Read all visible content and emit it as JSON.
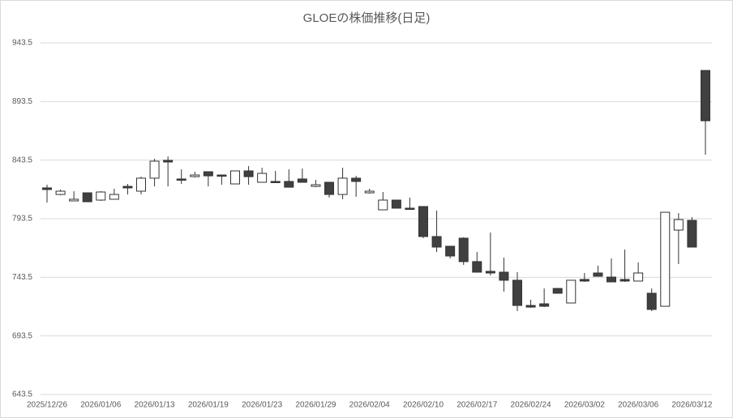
{
  "chart_data": {
    "type": "candlestick",
    "title": "GLOEの株価推移(日足)",
    "categories": [
      "2025/12/26",
      null,
      null,
      null,
      "2026/01/06",
      null,
      null,
      null,
      "2026/01/13",
      null,
      null,
      null,
      "2026/01/19",
      null,
      null,
      null,
      "2026/01/23",
      null,
      null,
      null,
      "2026/01/29",
      null,
      null,
      null,
      "2026/02/04",
      null,
      null,
      null,
      "2026/02/10",
      null,
      null,
      null,
      "2026/02/17",
      null,
      null,
      null,
      "2026/02/24",
      null,
      null,
      null,
      "2026/03/02",
      null,
      null,
      null,
      "2026/03/06",
      null,
      null,
      null,
      "2026/03/12",
      null
    ],
    "open": [
      819.8,
      814.2,
      808.7,
      815.6,
      809.4,
      810.1,
      821.1,
      817.0,
      828.1,
      843.3,
      827.4,
      829.4,
      833.6,
      830.8,
      823.2,
      834.3,
      824.6,
      825.3,
      825.3,
      827.4,
      821.1,
      824.6,
      814.2,
      828.1,
      815.6,
      801.1,
      809.4,
      802.5,
      803.9,
      778.3,
      770.0,
      776.9,
      756.9,
      748.6,
      747.9,
      741.0,
      719.5,
      720.9,
      734.0,
      721.6,
      741.7,
      747.2,
      743.7,
      741.7,
      740.3,
      729.9,
      718.8,
      783.8,
      792.1,
      920.0
    ],
    "high": [
      822.5,
      818.4,
      816.9,
      815.6,
      817.0,
      819.1,
      823.2,
      829.4,
      844.7,
      846.7,
      835.6,
      833.6,
      833.6,
      830.8,
      834.3,
      838.4,
      837.0,
      834.3,
      835.6,
      836.3,
      826.7,
      824.6,
      837.0,
      830.1,
      819.1,
      816.3,
      809.4,
      811.5,
      803.9,
      800.4,
      770.0,
      777.6,
      765.1,
      781.7,
      760.3,
      747.9,
      724.4,
      734.0,
      734.0,
      741.0,
      747.2,
      753.4,
      759.6,
      767.2,
      756.2,
      734.0,
      799.0,
      798.3,
      794.9,
      920.0
    ],
    "low": [
      807.3,
      813.5,
      808.7,
      808.0,
      808.7,
      810.1,
      814.2,
      814.2,
      821.1,
      821.1,
      823.2,
      828.7,
      821.1,
      822.5,
      823.2,
      822.5,
      824.6,
      823.9,
      820.4,
      824.6,
      820.4,
      811.5,
      810.1,
      812.2,
      814.9,
      801.1,
      802.5,
      801.8,
      776.9,
      765.1,
      759.6,
      754.1,
      747.9,
      745.1,
      731.3,
      714.7,
      717.5,
      718.1,
      729.9,
      721.6,
      739.6,
      744.4,
      739.6,
      739.6,
      740.3,
      714.7,
      718.8,
      754.8,
      769.3,
      848.1
    ],
    "close": [
      818.4,
      817.0,
      810.1,
      808.0,
      816.3,
      814.2,
      819.8,
      828.1,
      842.6,
      841.9,
      826.7,
      830.8,
      830.1,
      830.1,
      834.3,
      829.4,
      832.2,
      824.6,
      820.4,
      824.6,
      822.5,
      814.2,
      828.1,
      825.3,
      817.0,
      809.4,
      802.5,
      801.8,
      778.3,
      769.3,
      761.7,
      756.9,
      747.9,
      747.2,
      741.0,
      719.5,
      718.1,
      718.8,
      729.9,
      741.0,
      740.3,
      744.4,
      739.6,
      740.3,
      747.2,
      716.1,
      799.0,
      792.8,
      769.3,
      877.1
    ],
    "up_color": "#ffffff",
    "down_color": "#404040",
    "edge_color": "#333333",
    "ylim": [
      643.5,
      943.5
    ],
    "yticks": [
      643.5,
      693.5,
      743.5,
      793.5,
      843.5,
      893.5,
      943.5
    ],
    "grid": true
  }
}
